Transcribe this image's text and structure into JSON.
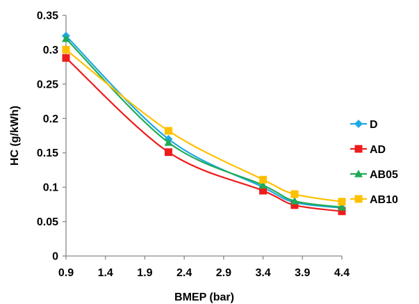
{
  "chart_data": {
    "type": "line",
    "title": "",
    "xlabel": "BMEP (bar)",
    "ylabel": "HC (g/kWh)",
    "xlim": [
      0.9,
      4.4
    ],
    "ylim": [
      0,
      0.35
    ],
    "x_ticks": [
      "0.9",
      "1.4",
      "1.9",
      "2.4",
      "2.9",
      "3.4",
      "3.9",
      "4.4"
    ],
    "y_ticks": [
      "0",
      "0.05",
      "0.1",
      "0.15",
      "0.2",
      "0.25",
      "0.3",
      "0.35"
    ],
    "x": [
      0.9,
      2.2,
      3.4,
      3.8,
      4.4
    ],
    "grid": false,
    "legend_position": "right",
    "series": [
      {
        "name": "D",
        "color": "#1EA9E1",
        "marker": "diamond",
        "values": [
          0.32,
          0.17,
          0.1,
          0.078,
          0.07
        ]
      },
      {
        "name": "AD",
        "color": "#EE1C1C",
        "marker": "square",
        "values": [
          0.288,
          0.151,
          0.095,
          0.074,
          0.065
        ]
      },
      {
        "name": "AB05",
        "color": "#1FAA55",
        "marker": "triangle",
        "values": [
          0.316,
          0.165,
          0.103,
          0.08,
          0.071
        ]
      },
      {
        "name": "AB10",
        "color": "#FFC000",
        "marker": "square",
        "values": [
          0.3,
          0.182,
          0.111,
          0.09,
          0.079
        ]
      }
    ]
  }
}
